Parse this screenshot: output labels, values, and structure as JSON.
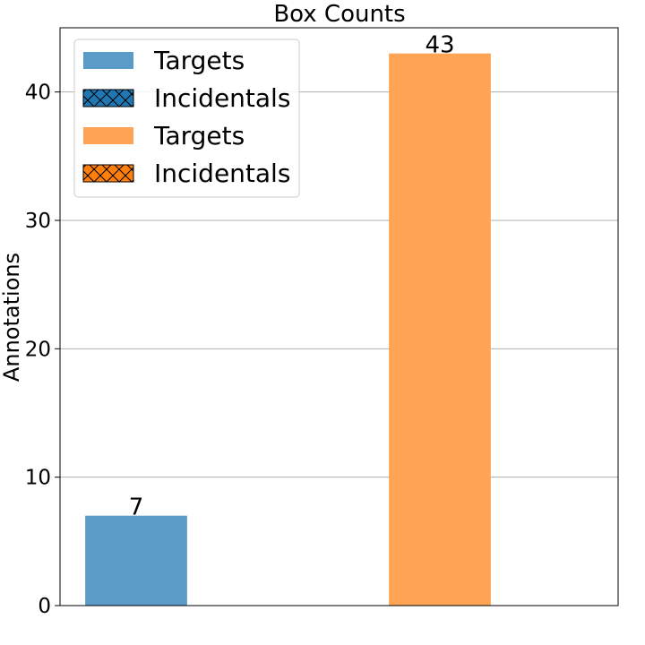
{
  "chart_data": {
    "type": "bar",
    "title": "Box Counts",
    "xlabel": "",
    "ylabel": "Annotations",
    "ylim": [
      0,
      45
    ],
    "yticks": [
      0,
      10,
      20,
      30,
      40
    ],
    "grid": "y",
    "legend_placement": "top-left",
    "bars": [
      {
        "value": 7,
        "label": "7",
        "color": "#5b9bc8"
      },
      {
        "value": 43,
        "label": "43",
        "color": "#ffa354"
      }
    ],
    "legend": [
      {
        "label": "Targets",
        "color": "#5b9bc8",
        "hatch": false
      },
      {
        "label": "Incidentals",
        "color": "#1f77b4",
        "hatch": true
      },
      {
        "label": "Targets",
        "color": "#ffa354",
        "hatch": false
      },
      {
        "label": "Incidentals",
        "color": "#ff7f0e",
        "hatch": true
      }
    ]
  }
}
